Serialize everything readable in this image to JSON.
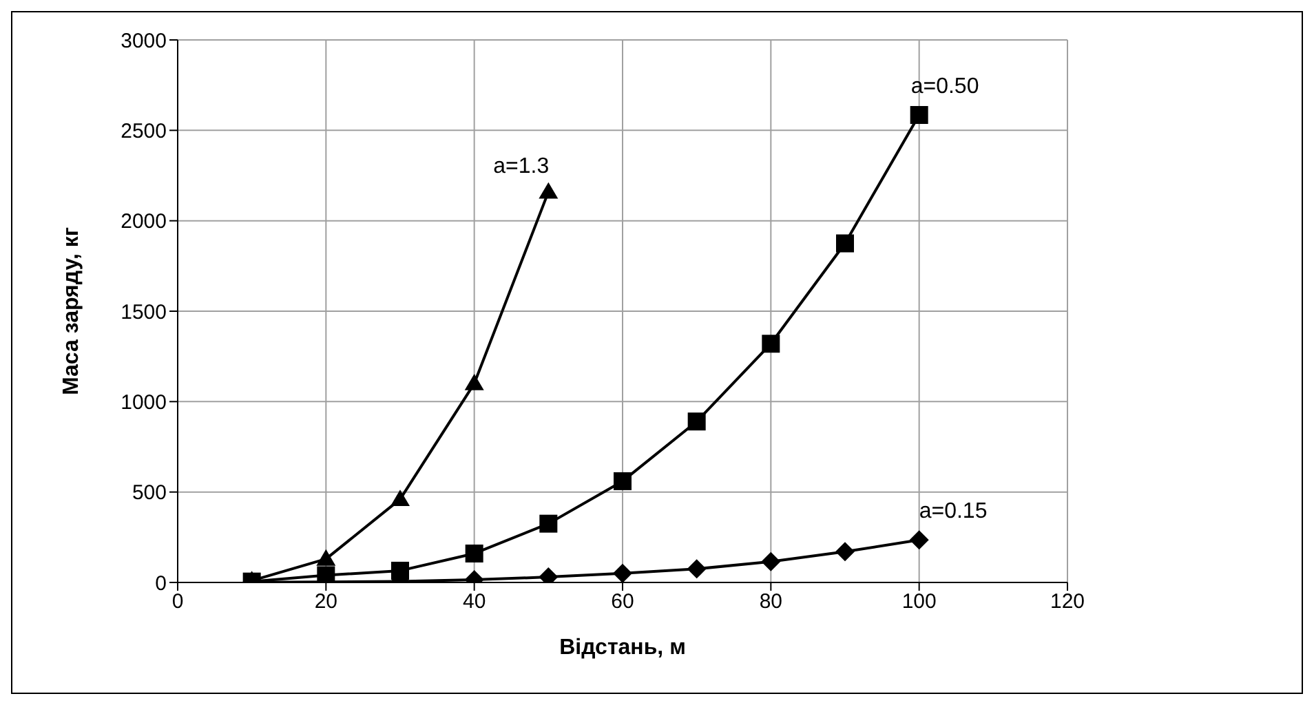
{
  "chart_data": {
    "type": "line",
    "xlabel": "Відстань, м",
    "ylabel": "Маса заряду, кг",
    "xlim": [
      0,
      120
    ],
    "xticks": [
      0,
      20,
      40,
      60,
      80,
      100,
      120
    ],
    "ylim": [
      0,
      3000
    ],
    "yticks": [
      0,
      500,
      1000,
      1500,
      2000,
      2500,
      3000
    ],
    "grid": true,
    "legend": false,
    "line_style": "solid",
    "series": [
      {
        "name": "a=1.3",
        "color": "#000000",
        "marker": "triangle",
        "x": [
          10,
          20,
          30,
          40,
          50
        ],
        "values": [
          10,
          130,
          460,
          1100,
          2160
        ]
      },
      {
        "name": "a=0.50",
        "color": "#000000",
        "marker": "square",
        "x": [
          10,
          20,
          30,
          40,
          50,
          60,
          70,
          80,
          90,
          100
        ],
        "values": [
          5,
          40,
          65,
          160,
          325,
          560,
          890,
          1320,
          1875,
          2585
        ]
      },
      {
        "name": "a=0.15",
        "color": "#000000",
        "marker": "diamond",
        "x": [
          10,
          20,
          30,
          40,
          50,
          60,
          70,
          80,
          90,
          100
        ],
        "values": [
          1,
          3,
          6,
          15,
          30,
          50,
          75,
          115,
          170,
          235
        ]
      }
    ]
  }
}
